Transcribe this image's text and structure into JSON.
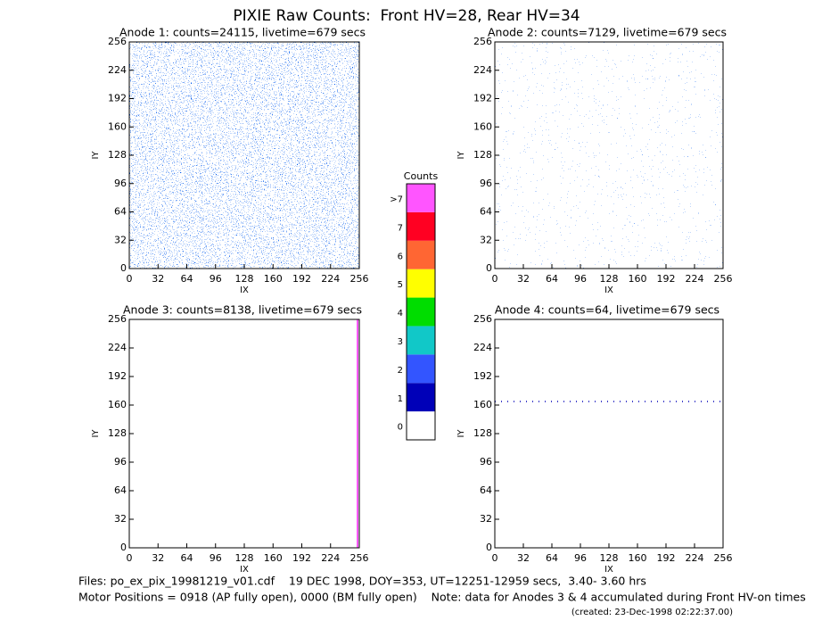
{
  "title": "PIXIE Raw Counts:  Front HV=28, Rear HV=34",
  "chart_data": [
    {
      "type": "image",
      "title": "Anode 1: counts=24115, livetime=679 secs",
      "x_label": "IX",
      "y_label": "IY",
      "xlim": [
        0,
        256
      ],
      "xticks": [
        0,
        32,
        64,
        96,
        128,
        160,
        192,
        224,
        256
      ],
      "ylim": [
        0,
        256
      ],
      "yticks": [
        0,
        32,
        64,
        96,
        128,
        160,
        192,
        224,
        256
      ]
    },
    {
      "type": "image",
      "title": "Anode 2: counts=7129, livetime=679 secs",
      "x_label": "IX",
      "y_label": "IY",
      "xlim": [
        0,
        256
      ],
      "xticks": [
        0,
        32,
        64,
        96,
        128,
        160,
        192,
        224,
        256
      ],
      "ylim": [
        0,
        256
      ],
      "yticks": [
        0,
        32,
        64,
        96,
        128,
        160,
        192,
        224,
        256
      ]
    },
    {
      "type": "image",
      "title": "Anode 3: counts=8138, livetime=679 secs",
      "x_label": "IX",
      "y_label": "IY",
      "xlim": [
        0,
        256
      ],
      "xticks": [
        0,
        32,
        64,
        96,
        128,
        160,
        192,
        224,
        256
      ],
      "ylim": [
        0,
        256
      ],
      "yticks": [
        0,
        32,
        64,
        96,
        128,
        160,
        192,
        224,
        256
      ]
    },
    {
      "type": "image",
      "title": "Anode 4: counts=64, livetime=679 secs",
      "x_label": "IX",
      "y_label": "IY",
      "xlim": [
        0,
        256
      ],
      "xticks": [
        0,
        32,
        64,
        96,
        128,
        160,
        192,
        224,
        256
      ],
      "ylim": [
        0,
        256
      ],
      "yticks": [
        0,
        32,
        64,
        96,
        128,
        160,
        192,
        224,
        256
      ]
    }
  ],
  "colorbar": {
    "title": "Counts",
    "levels": [
      {
        "label": "0",
        "color": "#ffffff"
      },
      {
        "label": "1",
        "color": "#0000b8"
      },
      {
        "label": "2",
        "color": "#3355ff"
      },
      {
        "label": "3",
        "color": "#11c8c8"
      },
      {
        "label": "4",
        "color": "#00dd00"
      },
      {
        "label": "5",
        "color": "#ffff00"
      },
      {
        "label": "6",
        "color": "#ff6633"
      },
      {
        "label": "7",
        "color": "#ff0022"
      },
      {
        "label": ">7",
        "color": "#ff55ff"
      }
    ]
  },
  "footer": [
    "Files: po_ex_pix_19981219_v01.cdf    19 DEC 1998, DOY=353, UT=12251-12959 secs,  3.40- 3.60 hrs",
    "Motor Positions = 0918 (AP fully open), 0000 (BM fully open)    Note: data for Anodes 3 & 4 accumulated during Front HV-on times",
    "(created: 23-Dec-1998 02:22:37.00)"
  ]
}
